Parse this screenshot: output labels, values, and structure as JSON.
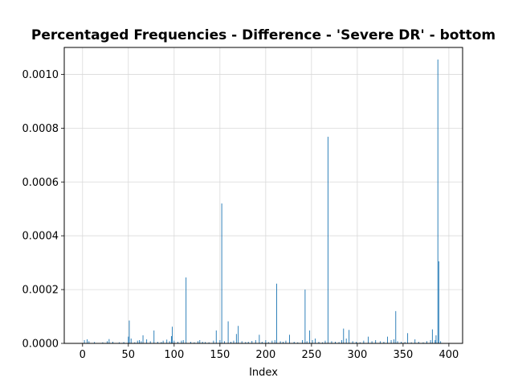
{
  "chart_data": {
    "type": "bar",
    "title": "Percentaged Frequencies - Difference - 'Severe DR' - bottom",
    "xlabel": "Index",
    "ylabel": "",
    "xlim": [
      -20,
      415
    ],
    "ylim": [
      0,
      0.0011
    ],
    "xticks": [
      0,
      50,
      100,
      150,
      200,
      250,
      300,
      350,
      400
    ],
    "xtick_labels": [
      "0",
      "50",
      "100",
      "150",
      "200",
      "250",
      "300",
      "350",
      "400"
    ],
    "yticks": [
      0,
      0.0002,
      0.0004,
      0.0006,
      0.0008,
      0.001
    ],
    "ytick_labels": [
      "0.0000",
      "0.0002",
      "0.0004",
      "0.0006",
      "0.0008",
      "0.0010"
    ],
    "grid": true,
    "bar_color": "#1f77b4",
    "series": [
      {
        "x": [
          2,
          5,
          7,
          13,
          22,
          27,
          29,
          33,
          40,
          45,
          50,
          51,
          53,
          57,
          60,
          62,
          64,
          66,
          70,
          74,
          78,
          82,
          86,
          88,
          92,
          95,
          97,
          98,
          100,
          104,
          108,
          110,
          113,
          118,
          122,
          126,
          128,
          131,
          134,
          138,
          143,
          146,
          150,
          152,
          155,
          159,
          162,
          165,
          168,
          170,
          174,
          178,
          181,
          185,
          189,
          193,
          196,
          200,
          203,
          207,
          210,
          212,
          216,
          219,
          222,
          226,
          231,
          235,
          240,
          243,
          245,
          248,
          251,
          254,
          258,
          262,
          265,
          268,
          272,
          276,
          280,
          283,
          285,
          288,
          291,
          295,
          299,
          303,
          307,
          312,
          316,
          320,
          325,
          329,
          333,
          337,
          340,
          342,
          344,
          348,
          352,
          355,
          359,
          363,
          367,
          372,
          376,
          380,
          382,
          385,
          386,
          388,
          389,
          391
        ],
        "values": [
          1.2e-05,
          1.5e-05,
          8e-06,
          5e-06,
          4e-06,
          8e-06,
          1.6e-05,
          6e-06,
          4e-06,
          5e-06,
          2.5e-05,
          8.5e-05,
          1.8e-05,
          4e-06,
          1e-05,
          1.2e-05,
          8e-06,
          3e-05,
          1.5e-05,
          8e-06,
          4.8e-05,
          6e-06,
          5e-06,
          1e-05,
          1.4e-05,
          8e-06,
          2.7e-05,
          6.2e-05,
          1e-05,
          6e-06,
          1e-05,
          1.2e-05,
          0.000245,
          6e-06,
          4e-06,
          8e-06,
          1.2e-05,
          6e-06,
          5e-06,
          4e-06,
          1e-05,
          4.8e-05,
          1.2e-05,
          0.00052,
          8e-06,
          8.2e-05,
          6e-06,
          1e-05,
          3.5e-05,
          6.5e-05,
          8e-06,
          5e-06,
          6e-06,
          9e-06,
          1.2e-05,
          3.2e-05,
          6e-06,
          1.2e-05,
          5e-06,
          1e-05,
          1.2e-05,
          0.000222,
          8e-06,
          6e-06,
          1e-05,
          3.2e-05,
          6e-06,
          4e-06,
          1.2e-05,
          0.0002,
          8e-06,
          4.8e-05,
          1.2e-05,
          1.8e-05,
          6e-06,
          4e-06,
          1e-05,
          0.000768,
          8e-06,
          6e-06,
          5e-06,
          1.2e-05,
          5.5e-05,
          1.8e-05,
          5e-05,
          8e-06,
          6e-06,
          4e-06,
          1e-05,
          2.5e-05,
          8e-06,
          1.2e-05,
          8e-06,
          6e-06,
          2.5e-05,
          1.2e-05,
          1.5e-05,
          0.00012,
          8e-06,
          6e-06,
          5e-06,
          3.8e-05,
          4e-06,
          1.5e-05,
          6e-06,
          4e-06,
          8e-06,
          1.2e-05,
          5.2e-05,
          1.2e-05,
          3e-05,
          0.001055,
          0.000305,
          8e-06
        ]
      }
    ]
  }
}
